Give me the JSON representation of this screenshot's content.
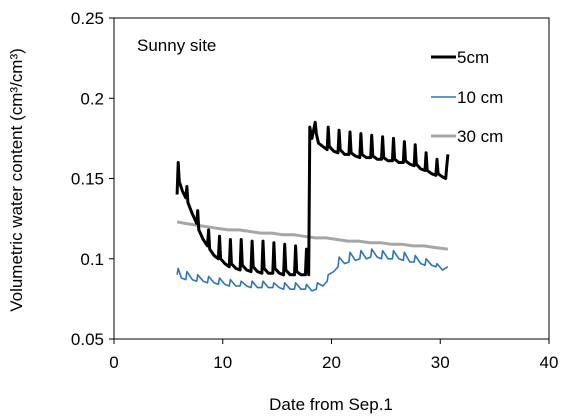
{
  "chart_data": {
    "type": "line",
    "annotation": "Sunny site",
    "xlabel": "Date from Sep.1",
    "ylabel": "Volumetric water content (cm³/cm³)",
    "xlim": [
      0,
      40
    ],
    "ylim": [
      0.05,
      0.25
    ],
    "xticks": [
      "0",
      "10",
      "20",
      "30",
      "40"
    ],
    "yticks": [
      "0.05",
      "0.1",
      "0.15",
      "0.2",
      "0.25"
    ],
    "grid": false,
    "legend_position": "top-right",
    "series": [
      {
        "name": "5cm",
        "color": "#000000",
        "x": [
          5.8,
          5.9,
          6.0,
          6.3,
          6.6,
          6.7,
          6.8,
          7.2,
          7.6,
          7.7,
          7.8,
          8.2,
          8.6,
          8.7,
          8.8,
          9.2,
          9.6,
          9.7,
          9.8,
          10.2,
          10.6,
          10.7,
          10.8,
          11.2,
          11.6,
          11.7,
          11.8,
          12.2,
          12.6,
          12.7,
          12.8,
          13.2,
          13.6,
          13.7,
          13.8,
          14.2,
          14.6,
          14.7,
          14.8,
          15.2,
          15.6,
          15.7,
          15.8,
          16.2,
          16.6,
          16.7,
          16.8,
          17.2,
          17.6,
          17.7,
          17.9,
          18.0,
          18.2,
          18.5,
          18.6,
          18.8,
          19.2,
          19.6,
          19.7,
          19.8,
          20.2,
          20.6,
          20.7,
          20.8,
          21.2,
          21.6,
          21.7,
          21.8,
          22.2,
          22.6,
          22.7,
          22.8,
          23.2,
          23.6,
          23.7,
          23.8,
          24.2,
          24.6,
          24.7,
          24.8,
          25.2,
          25.6,
          25.7,
          25.8,
          26.2,
          26.6,
          26.7,
          26.8,
          27.2,
          27.6,
          27.7,
          27.8,
          28.2,
          28.6,
          28.7,
          28.8,
          29.2,
          29.6,
          29.7,
          29.8,
          30.2,
          30.5,
          30.6,
          30.7
        ],
        "y": [
          0.14,
          0.16,
          0.148,
          0.142,
          0.138,
          0.145,
          0.135,
          0.128,
          0.122,
          0.13,
          0.118,
          0.112,
          0.108,
          0.118,
          0.106,
          0.102,
          0.1,
          0.114,
          0.1,
          0.097,
          0.095,
          0.112,
          0.097,
          0.094,
          0.093,
          0.112,
          0.096,
          0.093,
          0.092,
          0.111,
          0.095,
          0.092,
          0.091,
          0.111,
          0.094,
          0.091,
          0.091,
          0.11,
          0.094,
          0.091,
          0.09,
          0.109,
          0.093,
          0.09,
          0.09,
          0.108,
          0.092,
          0.09,
          0.09,
          0.106,
          0.09,
          0.182,
          0.175,
          0.185,
          0.178,
          0.172,
          0.17,
          0.168,
          0.182,
          0.17,
          0.167,
          0.166,
          0.18,
          0.168,
          0.165,
          0.165,
          0.179,
          0.166,
          0.164,
          0.163,
          0.178,
          0.165,
          0.163,
          0.163,
          0.177,
          0.164,
          0.162,
          0.162,
          0.176,
          0.163,
          0.161,
          0.161,
          0.175,
          0.162,
          0.16,
          0.16,
          0.173,
          0.161,
          0.159,
          0.158,
          0.171,
          0.159,
          0.156,
          0.155,
          0.166,
          0.155,
          0.153,
          0.152,
          0.162,
          0.153,
          0.151,
          0.15,
          0.158,
          0.165
        ]
      },
      {
        "name": "10 cm",
        "color": "#2e75b6",
        "x": [
          5.8,
          5.9,
          6.2,
          6.6,
          6.7,
          7.2,
          7.6,
          7.7,
          8.2,
          8.6,
          8.7,
          9.2,
          9.6,
          9.7,
          10.2,
          10.6,
          10.7,
          11.2,
          11.6,
          11.7,
          12.2,
          12.6,
          12.7,
          13.2,
          13.6,
          13.7,
          14.2,
          14.6,
          14.7,
          15.2,
          15.6,
          15.7,
          16.2,
          16.6,
          16.7,
          17.2,
          17.6,
          17.7,
          18.2,
          18.6,
          18.7,
          19.2,
          19.6,
          19.7,
          20.2,
          20.6,
          20.7,
          21.2,
          21.6,
          21.7,
          22.2,
          22.6,
          22.7,
          23.2,
          23.6,
          23.7,
          24.2,
          24.6,
          24.7,
          25.2,
          25.6,
          25.7,
          26.2,
          26.6,
          26.7,
          27.2,
          27.6,
          27.7,
          28.2,
          28.6,
          28.7,
          29.2,
          29.6,
          29.7,
          30.2,
          30.7
        ],
        "y": [
          0.09,
          0.094,
          0.088,
          0.087,
          0.092,
          0.087,
          0.086,
          0.09,
          0.086,
          0.085,
          0.089,
          0.085,
          0.084,
          0.088,
          0.084,
          0.083,
          0.087,
          0.083,
          0.083,
          0.086,
          0.083,
          0.082,
          0.086,
          0.082,
          0.082,
          0.086,
          0.082,
          0.082,
          0.085,
          0.082,
          0.081,
          0.085,
          0.081,
          0.081,
          0.085,
          0.081,
          0.081,
          0.084,
          0.08,
          0.081,
          0.085,
          0.083,
          0.086,
          0.09,
          0.092,
          0.095,
          0.101,
          0.097,
          0.098,
          0.104,
          0.099,
          0.1,
          0.105,
          0.1,
          0.101,
          0.106,
          0.101,
          0.1,
          0.105,
          0.1,
          0.1,
          0.105,
          0.1,
          0.099,
          0.104,
          0.098,
          0.098,
          0.102,
          0.097,
          0.096,
          0.1,
          0.096,
          0.095,
          0.097,
          0.093,
          0.095
        ]
      },
      {
        "name": "30 cm",
        "color": "#a6a6a6",
        "x": [
          5.8,
          6.5,
          7.5,
          8.5,
          9.5,
          10.5,
          11.5,
          12.5,
          13.5,
          14.5,
          15.5,
          16.5,
          17.5,
          18.5,
          19.5,
          20.5,
          21.5,
          22.5,
          23.5,
          24.5,
          25.5,
          26.5,
          27.5,
          28.5,
          29.5,
          30.7
        ],
        "y": [
          0.123,
          0.122,
          0.121,
          0.12,
          0.119,
          0.118,
          0.118,
          0.117,
          0.116,
          0.116,
          0.115,
          0.115,
          0.114,
          0.113,
          0.113,
          0.112,
          0.111,
          0.111,
          0.11,
          0.11,
          0.109,
          0.109,
          0.108,
          0.108,
          0.107,
          0.106
        ]
      }
    ]
  }
}
